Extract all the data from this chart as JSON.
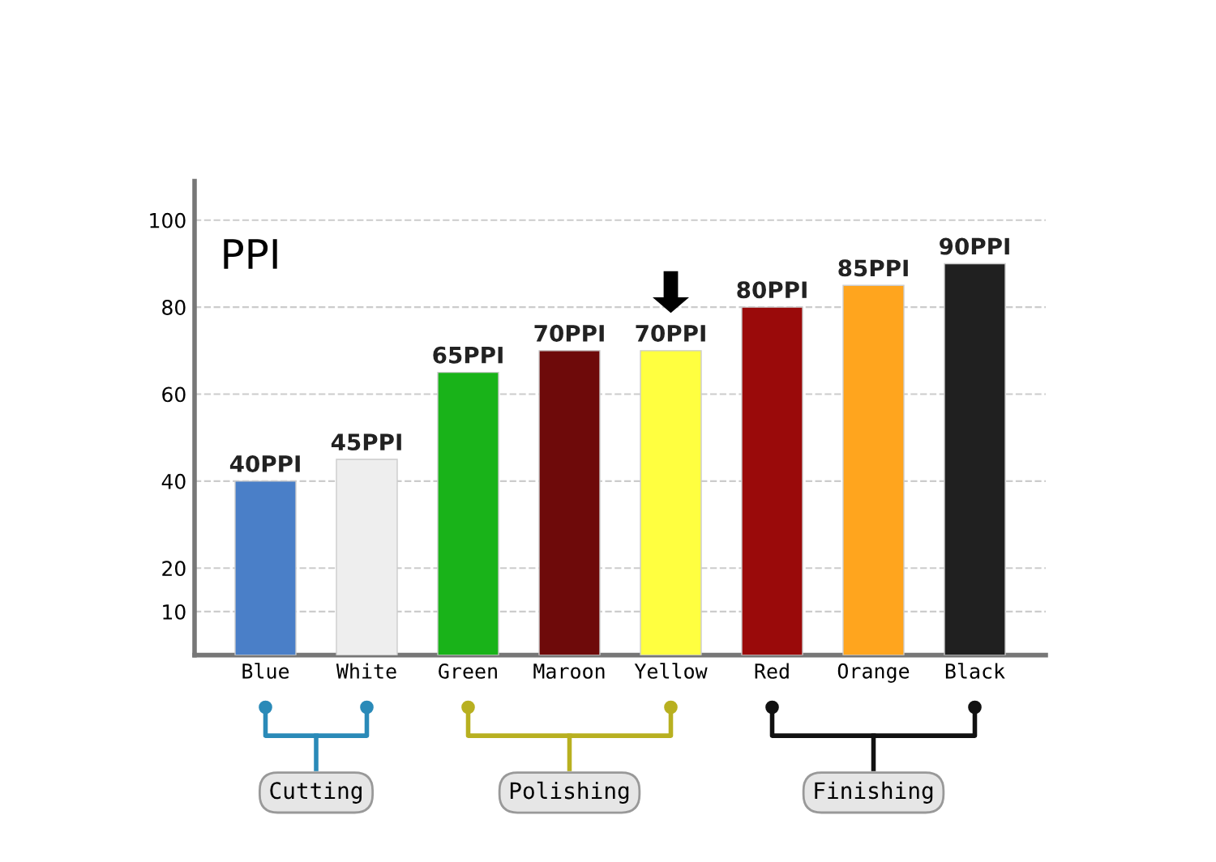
{
  "chart_data": {
    "type": "bar",
    "categories": [
      "Blue",
      "White",
      "Green",
      "Maroon",
      "Yellow",
      "Red",
      "Orange",
      "Black"
    ],
    "values": [
      40,
      45,
      65,
      70,
      70,
      80,
      85,
      90
    ],
    "value_labels": [
      "40PPI",
      "45PPI",
      "65PPI",
      "70PPI",
      "70PPI",
      "80PPI",
      "85PPI",
      "90PPI"
    ],
    "colors": [
      "#4a7fc8",
      "#eeeeee",
      "#19b319",
      "#6e0a0a",
      "#ffff40",
      "#9a0a0a",
      "#ffa51e",
      "#202020"
    ],
    "ylim": [
      0,
      109
    ],
    "yticks": [
      10,
      20,
      40,
      60,
      80,
      100
    ],
    "grid": "y",
    "annotations": [
      "PPI",
      "Cutting",
      "Polishing",
      "Finishing"
    ]
  }
}
